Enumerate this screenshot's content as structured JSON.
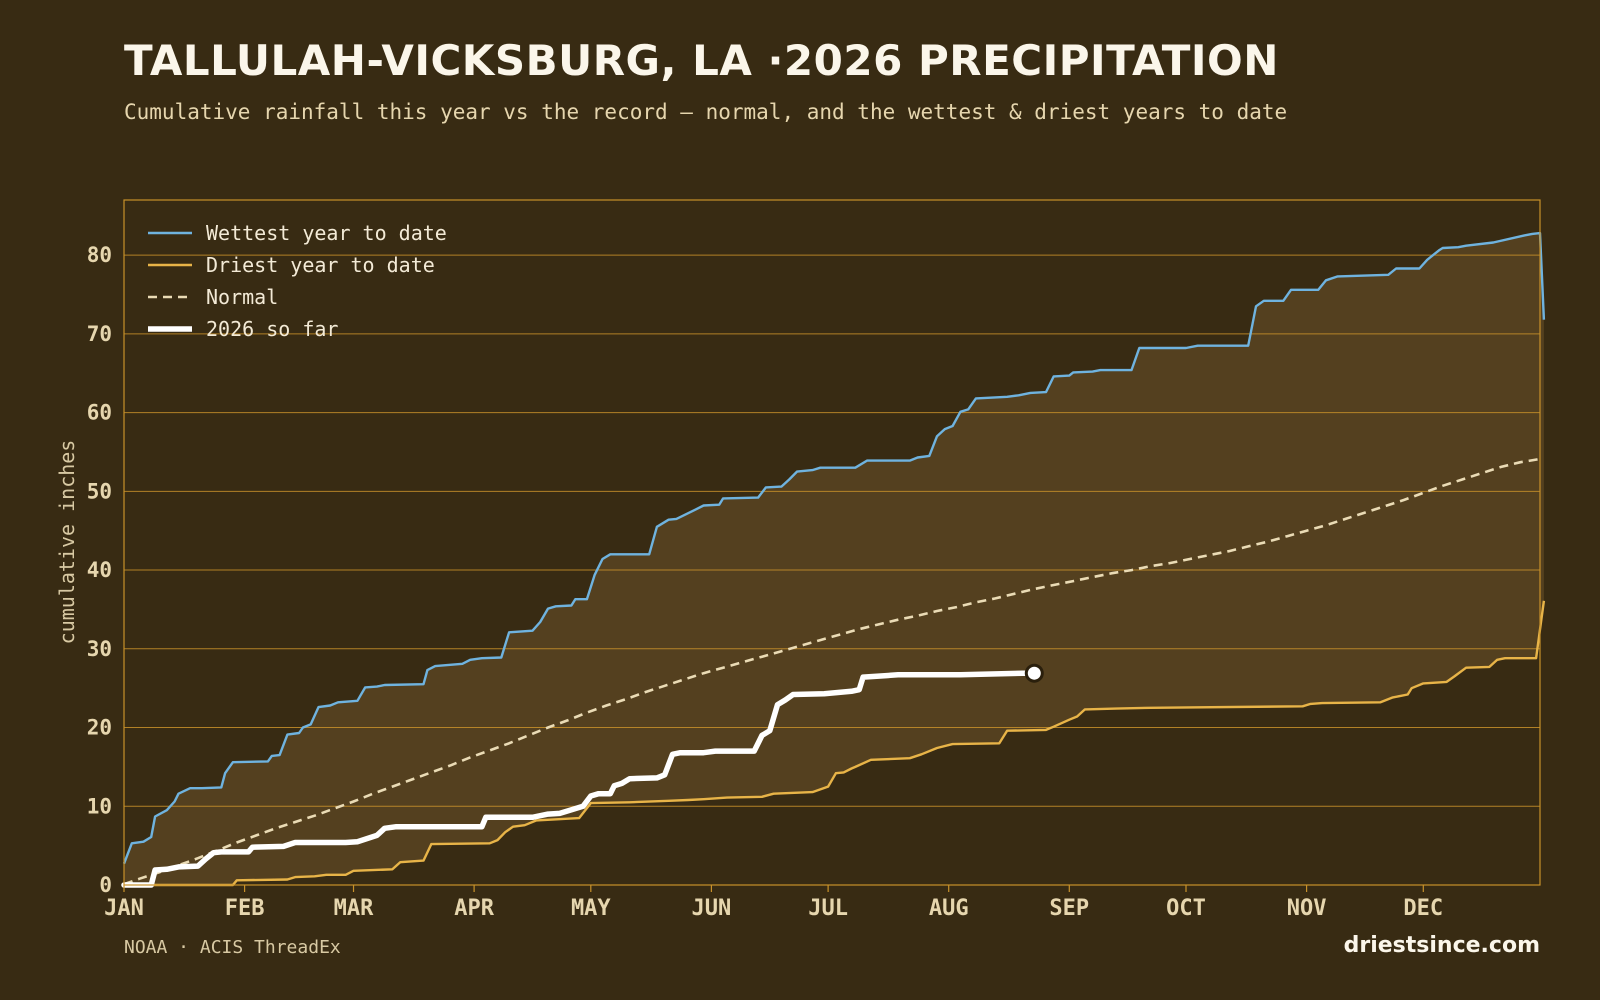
{
  "header": {
    "title": "TALLULAH-VICKSBURG, LA ·2026 PRECIPITATION",
    "subtitle": "Cumulative rainfall this year vs the record — normal, and the wettest & driest years to date"
  },
  "footer": {
    "source": "NOAA · ACIS ThreadEx",
    "site": "driestsince.com"
  },
  "colors": {
    "background": "#382b13",
    "band_fill": "#54401f",
    "grid": "#c8912a",
    "wettest": "#6fb3df",
    "driest": "#e8b448",
    "normal": "#eadbb5",
    "current": "#ffffff"
  },
  "chart_data": {
    "type": "line",
    "title": "TALLULAH-VICKSBURG, LA ·2026 PRECIPITATION",
    "xlabel": "",
    "ylabel": "cumulative inches",
    "xlim": [
      1,
      365
    ],
    "ylim": [
      0,
      87
    ],
    "y_ticks": [
      0,
      10,
      20,
      30,
      40,
      50,
      60,
      70,
      80
    ],
    "x_ticks": [
      {
        "label": "JAN",
        "day": 1
      },
      {
        "label": "FEB",
        "day": 32
      },
      {
        "label": "MAR",
        "day": 60
      },
      {
        "label": "APR",
        "day": 91
      },
      {
        "label": "MAY",
        "day": 121
      },
      {
        "label": "JUN",
        "day": 152
      },
      {
        "label": "JUL",
        "day": 182
      },
      {
        "label": "AUG",
        "day": 213
      },
      {
        "label": "SEP",
        "day": 244
      },
      {
        "label": "OCT",
        "day": 274
      },
      {
        "label": "NOV",
        "day": 305
      },
      {
        "label": "DEC",
        "day": 335
      }
    ],
    "grid": "horizontal",
    "legend_position": "top-left",
    "series": [
      {
        "name": "Wettest year to date",
        "color": "#6fb3df",
        "style": "step",
        "points": [
          [
            1,
            2.7
          ],
          [
            3,
            5.3
          ],
          [
            6,
            5.5
          ],
          [
            8,
            6.1
          ],
          [
            9,
            8.7
          ],
          [
            12,
            9.5
          ],
          [
            14,
            10.6
          ],
          [
            15,
            11.6
          ],
          [
            18,
            12.3
          ],
          [
            21,
            12.3
          ],
          [
            26,
            12.4
          ],
          [
            27,
            14.2
          ],
          [
            29,
            15.6
          ],
          [
            38,
            15.7
          ],
          [
            39,
            16.4
          ],
          [
            41,
            16.5
          ],
          [
            43,
            19.1
          ],
          [
            46,
            19.3
          ],
          [
            47,
            20.0
          ],
          [
            49,
            20.4
          ],
          [
            51,
            22.6
          ],
          [
            54,
            22.8
          ],
          [
            56,
            23.2
          ],
          [
            61,
            23.4
          ],
          [
            63,
            25.1
          ],
          [
            66,
            25.2
          ],
          [
            68,
            25.4
          ],
          [
            78,
            25.5
          ],
          [
            79,
            27.3
          ],
          [
            81,
            27.8
          ],
          [
            88,
            28.1
          ],
          [
            90,
            28.6
          ],
          [
            93,
            28.8
          ],
          [
            98,
            28.9
          ],
          [
            100,
            32.1
          ],
          [
            106,
            32.3
          ],
          [
            108,
            33.4
          ],
          [
            110,
            35.1
          ],
          [
            112,
            35.4
          ],
          [
            116,
            35.5
          ],
          [
            117,
            36.3
          ],
          [
            120,
            36.3
          ],
          [
            122,
            39.4
          ],
          [
            124,
            41.4
          ],
          [
            126,
            42.0
          ],
          [
            136,
            42.0
          ],
          [
            138,
            45.5
          ],
          [
            141,
            46.4
          ],
          [
            143,
            46.5
          ],
          [
            148,
            47.7
          ],
          [
            150,
            48.2
          ],
          [
            154,
            48.3
          ],
          [
            155,
            49.1
          ],
          [
            164,
            49.2
          ],
          [
            166,
            50.5
          ],
          [
            170,
            50.6
          ],
          [
            172,
            51.5
          ],
          [
            174,
            52.5
          ],
          [
            178,
            52.7
          ],
          [
            180,
            53.0
          ],
          [
            189,
            53.0
          ],
          [
            192,
            53.9
          ],
          [
            203,
            53.9
          ],
          [
            205,
            54.3
          ],
          [
            208,
            54.5
          ],
          [
            210,
            57.0
          ],
          [
            212,
            57.9
          ],
          [
            214,
            58.3
          ],
          [
            216,
            60.1
          ],
          [
            218,
            60.4
          ],
          [
            220,
            61.8
          ],
          [
            228,
            62.0
          ],
          [
            231,
            62.2
          ],
          [
            234,
            62.5
          ],
          [
            238,
            62.6
          ],
          [
            240,
            64.6
          ],
          [
            244,
            64.7
          ],
          [
            245,
            65.1
          ],
          [
            250,
            65.2
          ],
          [
            252,
            65.4
          ],
          [
            260,
            65.4
          ],
          [
            262,
            68.2
          ],
          [
            274,
            68.2
          ],
          [
            277,
            68.5
          ],
          [
            290,
            68.5
          ],
          [
            292,
            73.5
          ],
          [
            294,
            74.2
          ],
          [
            299,
            74.2
          ],
          [
            301,
            75.6
          ],
          [
            308,
            75.6
          ],
          [
            310,
            76.8
          ],
          [
            313,
            77.3
          ],
          [
            326,
            77.5
          ],
          [
            328,
            78.3
          ],
          [
            334,
            78.3
          ],
          [
            336,
            79.4
          ],
          [
            339,
            80.6
          ],
          [
            340,
            80.9
          ],
          [
            344,
            81.0
          ],
          [
            346,
            81.2
          ],
          [
            353,
            81.6
          ],
          [
            361,
            82.5
          ],
          [
            363,
            82.7
          ],
          [
            365,
            82.8
          ],
          [
            366,
            71.8
          ]
        ]
      },
      {
        "name": "Driest year to date",
        "color": "#e8b448",
        "style": "step",
        "points": [
          [
            1,
            0.0
          ],
          [
            29,
            0.0
          ],
          [
            30,
            0.6
          ],
          [
            43,
            0.7
          ],
          [
            45,
            1.0
          ],
          [
            50,
            1.1
          ],
          [
            53,
            1.3
          ],
          [
            58,
            1.3
          ],
          [
            60,
            1.8
          ],
          [
            70,
            2.0
          ],
          [
            72,
            2.9
          ],
          [
            78,
            3.1
          ],
          [
            80,
            5.2
          ],
          [
            95,
            5.3
          ],
          [
            97,
            5.7
          ],
          [
            99,
            6.7
          ],
          [
            101,
            7.4
          ],
          [
            104,
            7.6
          ],
          [
            107,
            8.2
          ],
          [
            118,
            8.5
          ],
          [
            121,
            10.4
          ],
          [
            131,
            10.5
          ],
          [
            141,
            10.7
          ],
          [
            146,
            10.8
          ],
          [
            150,
            10.9
          ],
          [
            156,
            11.1
          ],
          [
            165,
            11.2
          ],
          [
            168,
            11.6
          ],
          [
            178,
            11.8
          ],
          [
            182,
            12.5
          ],
          [
            184,
            14.2
          ],
          [
            186,
            14.3
          ],
          [
            188,
            14.8
          ],
          [
            189,
            15.0
          ],
          [
            193,
            15.9
          ],
          [
            203,
            16.1
          ],
          [
            206,
            16.6
          ],
          [
            210,
            17.4
          ],
          [
            214,
            17.9
          ],
          [
            226,
            18.0
          ],
          [
            228,
            19.6
          ],
          [
            238,
            19.7
          ],
          [
            240,
            20.1
          ],
          [
            244,
            21.0
          ],
          [
            246,
            21.4
          ],
          [
            248,
            22.3
          ],
          [
            256,
            22.4
          ],
          [
            265,
            22.5
          ],
          [
            304,
            22.7
          ],
          [
            306,
            23.0
          ],
          [
            309,
            23.1
          ],
          [
            324,
            23.2
          ],
          [
            327,
            23.8
          ],
          [
            331,
            24.2
          ],
          [
            332,
            25.0
          ],
          [
            335,
            25.6
          ],
          [
            341,
            25.8
          ],
          [
            343,
            26.5
          ],
          [
            346,
            27.6
          ],
          [
            352,
            27.7
          ],
          [
            354,
            28.6
          ],
          [
            356,
            28.8
          ],
          [
            364,
            28.8
          ],
          [
            366,
            36.1
          ]
        ]
      },
      {
        "name": "Normal",
        "color": "#eadbb5",
        "style": "dashed",
        "points": [
          [
            1,
            0.1
          ],
          [
            5,
            0.8
          ],
          [
            10,
            1.6
          ],
          [
            15,
            2.5
          ],
          [
            20,
            3.4
          ],
          [
            25,
            4.4
          ],
          [
            30,
            5.4
          ],
          [
            35,
            6.3
          ],
          [
            40,
            7.2
          ],
          [
            45,
            8.0
          ],
          [
            50,
            8.8
          ],
          [
            55,
            9.7
          ],
          [
            60,
            10.6
          ],
          [
            65,
            11.6
          ],
          [
            70,
            12.5
          ],
          [
            75,
            13.4
          ],
          [
            80,
            14.3
          ],
          [
            85,
            15.2
          ],
          [
            90,
            16.2
          ],
          [
            95,
            17.1
          ],
          [
            100,
            18.0
          ],
          [
            105,
            19.0
          ],
          [
            110,
            20.0
          ],
          [
            115,
            20.9
          ],
          [
            120,
            21.9
          ],
          [
            125,
            22.8
          ],
          [
            130,
            23.6
          ],
          [
            135,
            24.5
          ],
          [
            140,
            25.3
          ],
          [
            145,
            26.1
          ],
          [
            150,
            26.9
          ],
          [
            155,
            27.6
          ],
          [
            160,
            28.3
          ],
          [
            165,
            29.0
          ],
          [
            170,
            29.7
          ],
          [
            175,
            30.4
          ],
          [
            180,
            31.1
          ],
          [
            185,
            31.8
          ],
          [
            190,
            32.5
          ],
          [
            195,
            33.1
          ],
          [
            200,
            33.7
          ],
          [
            205,
            34.2
          ],
          [
            210,
            34.8
          ],
          [
            215,
            35.3
          ],
          [
            220,
            35.9
          ],
          [
            225,
            36.4
          ],
          [
            230,
            37.0
          ],
          [
            235,
            37.6
          ],
          [
            240,
            38.1
          ],
          [
            245,
            38.6
          ],
          [
            250,
            39.1
          ],
          [
            255,
            39.6
          ],
          [
            260,
            40.0
          ],
          [
            265,
            40.5
          ],
          [
            270,
            40.9
          ],
          [
            275,
            41.4
          ],
          [
            280,
            41.9
          ],
          [
            285,
            42.4
          ],
          [
            290,
            43.0
          ],
          [
            295,
            43.6
          ],
          [
            300,
            44.3
          ],
          [
            305,
            45.0
          ],
          [
            310,
            45.7
          ],
          [
            315,
            46.5
          ],
          [
            320,
            47.3
          ],
          [
            325,
            48.1
          ],
          [
            330,
            48.9
          ],
          [
            335,
            49.8
          ],
          [
            340,
            50.7
          ],
          [
            345,
            51.5
          ],
          [
            350,
            52.3
          ],
          [
            355,
            53.1
          ],
          [
            360,
            53.7
          ],
          [
            365,
            54.1
          ]
        ]
      },
      {
        "name": "2026 so far",
        "color": "#ffffff",
        "style": "step",
        "points": [
          [
            1,
            0.0
          ],
          [
            8,
            0.0
          ],
          [
            9,
            1.9
          ],
          [
            12,
            2.0
          ],
          [
            15,
            2.3
          ],
          [
            20,
            2.4
          ],
          [
            22,
            3.3
          ],
          [
            24,
            4.1
          ],
          [
            26,
            4.2
          ],
          [
            33,
            4.2
          ],
          [
            34,
            4.8
          ],
          [
            42,
            4.9
          ],
          [
            45,
            5.4
          ],
          [
            58,
            5.4
          ],
          [
            61,
            5.5
          ],
          [
            66,
            6.3
          ],
          [
            68,
            7.2
          ],
          [
            71,
            7.4
          ],
          [
            84,
            7.4
          ],
          [
            93,
            7.4
          ],
          [
            94,
            8.6
          ],
          [
            106,
            8.6
          ],
          [
            110,
            9.0
          ],
          [
            113,
            9.1
          ],
          [
            115,
            9.4
          ],
          [
            119,
            10.0
          ],
          [
            121,
            11.3
          ],
          [
            123,
            11.6
          ],
          [
            126,
            11.6
          ],
          [
            127,
            12.6
          ],
          [
            129,
            12.9
          ],
          [
            131,
            13.5
          ],
          [
            138,
            13.6
          ],
          [
            140,
            14.0
          ],
          [
            142,
            16.6
          ],
          [
            144,
            16.8
          ],
          [
            150,
            16.8
          ],
          [
            153,
            17.0
          ],
          [
            163,
            17.0
          ],
          [
            165,
            19.0
          ],
          [
            167,
            19.6
          ],
          [
            169,
            22.9
          ],
          [
            171,
            23.5
          ],
          [
            173,
            24.2
          ],
          [
            181,
            24.3
          ],
          [
            188,
            24.6
          ],
          [
            190,
            24.8
          ],
          [
            191,
            26.4
          ],
          [
            197,
            26.6
          ],
          [
            200,
            26.7
          ],
          [
            216,
            26.7
          ],
          [
            232,
            26.9
          ],
          [
            235,
            26.9
          ]
        ]
      }
    ],
    "current_marker": {
      "day": 235,
      "value": 26.9
    }
  }
}
